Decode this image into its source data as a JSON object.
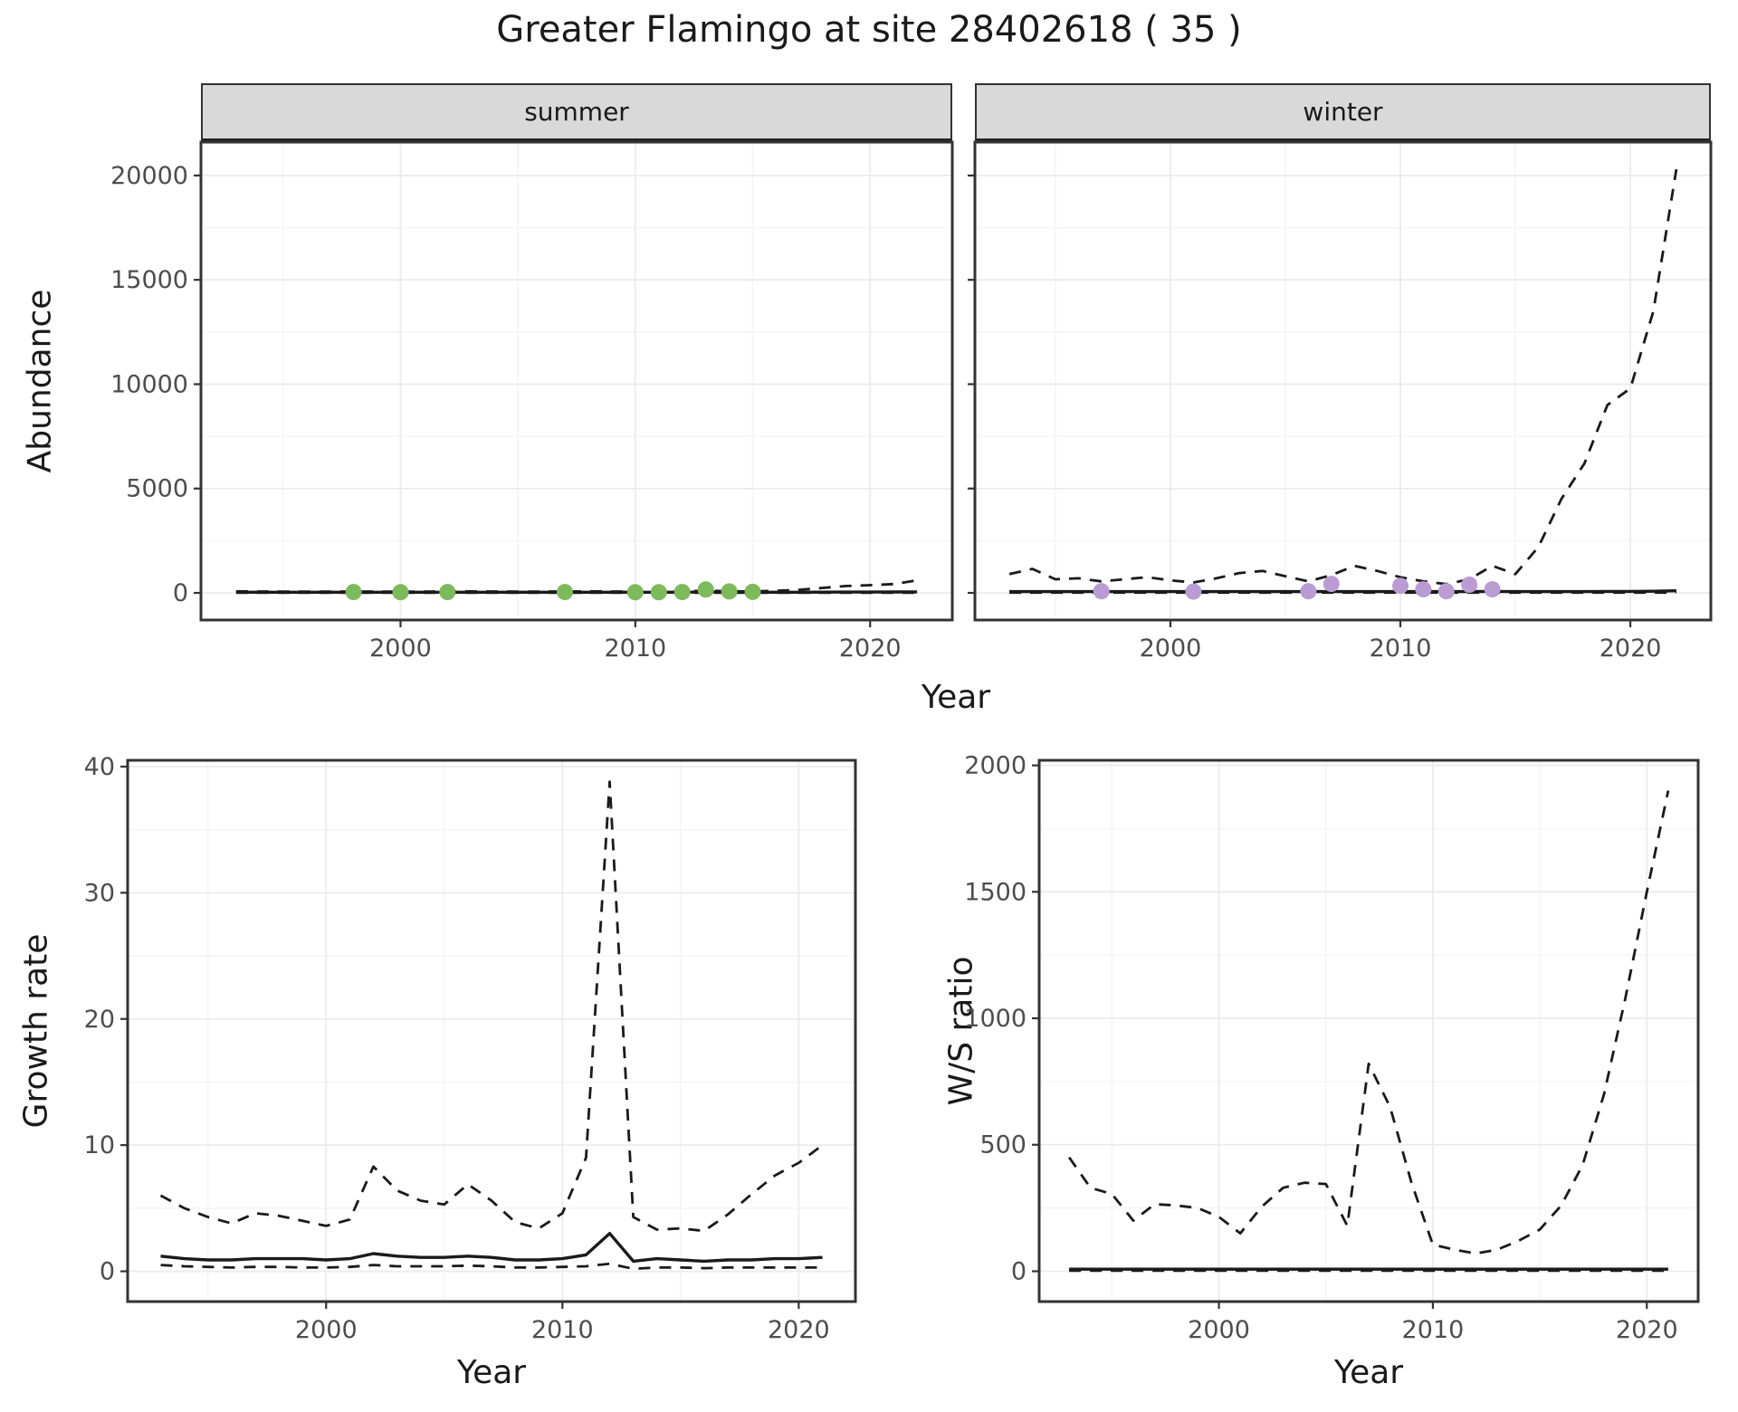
{
  "title": "Greater Flamingo at site 28402618 ( 35 )",
  "colors": {
    "summer_point": "#7cba5c",
    "winter_point": "#b99cd4",
    "line": "#1a1a1a",
    "strip_bg": "#d9d9d9",
    "grid_major": "#ebebeb",
    "grid_minor": "#f5f5f5",
    "panel_border": "#333333",
    "tick_text": "#4d4d4d"
  },
  "chart_data": [
    {
      "name": "abundance-summer",
      "type": "line",
      "facet_label": "summer",
      "xlabel": "Year",
      "ylabel": "Abundance",
      "xlim": [
        1991.5,
        2023.5
      ],
      "ylim": [
        -1300,
        21600
      ],
      "xticks": [
        2000,
        2010,
        2020
      ],
      "yticks": [
        0,
        5000,
        10000,
        15000,
        20000
      ],
      "xticks_minor": [
        1995,
        2005,
        2015
      ],
      "yticks_minor": [
        2500,
        7500,
        12500,
        17500
      ],
      "series": [
        {
          "name": "ci-upper",
          "style": "dashed",
          "x": [
            1993,
            1994,
            1995,
            1996,
            1997,
            1998,
            1999,
            2000,
            2001,
            2002,
            2003,
            2004,
            2005,
            2006,
            2007,
            2008,
            2009,
            2010,
            2011,
            2012,
            2013,
            2014,
            2015,
            2016,
            2017,
            2018,
            2019,
            2020,
            2021,
            2022
          ],
          "y": [
            70,
            65,
            60,
            60,
            60,
            65,
            60,
            60,
            60,
            65,
            70,
            65,
            60,
            60,
            65,
            70,
            65,
            60,
            60,
            65,
            110,
            80,
            70,
            100,
            150,
            240,
            330,
            370,
            420,
            600
          ]
        },
        {
          "name": "ci-lower",
          "style": "dashed",
          "x": [
            1993,
            1994,
            1995,
            1996,
            1997,
            1998,
            1999,
            2000,
            2001,
            2002,
            2003,
            2004,
            2005,
            2006,
            2007,
            2008,
            2009,
            2010,
            2011,
            2012,
            2013,
            2014,
            2015,
            2016,
            2017,
            2018,
            2019,
            2020,
            2021,
            2022
          ],
          "y": [
            5,
            5,
            5,
            5,
            5,
            5,
            5,
            5,
            5,
            5,
            5,
            5,
            5,
            5,
            5,
            5,
            5,
            5,
            5,
            5,
            10,
            5,
            5,
            5,
            5,
            5,
            5,
            5,
            5,
            5
          ]
        },
        {
          "name": "mean",
          "style": "solid",
          "x": [
            1993,
            1994,
            1995,
            1996,
            1997,
            1998,
            1999,
            2000,
            2001,
            2002,
            2003,
            2004,
            2005,
            2006,
            2007,
            2008,
            2009,
            2010,
            2011,
            2012,
            2013,
            2014,
            2015,
            2016,
            2017,
            2018,
            2019,
            2020,
            2021,
            2022
          ],
          "y": [
            30,
            30,
            30,
            30,
            30,
            30,
            30,
            30,
            30,
            30,
            30,
            30,
            30,
            30,
            30,
            30,
            30,
            30,
            30,
            30,
            45,
            35,
            30,
            30,
            30,
            35,
            40,
            40,
            45,
            50
          ]
        },
        {
          "name": "observations",
          "style": "points",
          "color": "#7cba5c",
          "x": [
            1998,
            2000,
            2002,
            2007,
            2010,
            2011,
            2012,
            2013,
            2014,
            2015
          ],
          "y": [
            40,
            30,
            40,
            40,
            30,
            30,
            40,
            160,
            70,
            50
          ]
        }
      ]
    },
    {
      "name": "abundance-winter",
      "type": "line",
      "facet_label": "winter",
      "xlabel": "Year",
      "ylabel": "Abundance",
      "xlim": [
        1991.5,
        2023.5
      ],
      "ylim": [
        -1300,
        21600
      ],
      "xticks": [
        2000,
        2010,
        2020
      ],
      "yticks": [
        0,
        5000,
        10000,
        15000,
        20000
      ],
      "xticks_minor": [
        1995,
        2005,
        2015
      ],
      "yticks_minor": [
        2500,
        7500,
        12500,
        17500
      ],
      "series": [
        {
          "name": "ci-upper",
          "style": "dashed",
          "x": [
            1993,
            1994,
            1995,
            1996,
            1997,
            1998,
            1999,
            2000,
            2001,
            2002,
            2003,
            2004,
            2005,
            2006,
            2007,
            2008,
            2009,
            2010,
            2011,
            2012,
            2013,
            2014,
            2015,
            2016,
            2017,
            2018,
            2019,
            2020,
            2021,
            2022
          ],
          "y": [
            900,
            1150,
            650,
            700,
            550,
            650,
            750,
            600,
            500,
            700,
            950,
            1050,
            800,
            550,
            850,
            1300,
            1050,
            750,
            550,
            420,
            650,
            1300,
            900,
            2200,
            4500,
            6200,
            9000,
            9800,
            13500,
            20300
          ]
        },
        {
          "name": "ci-lower",
          "style": "dashed",
          "x": [
            1993,
            1994,
            1995,
            1996,
            1997,
            1998,
            1999,
            2000,
            2001,
            2002,
            2003,
            2004,
            2005,
            2006,
            2007,
            2008,
            2009,
            2010,
            2011,
            2012,
            2013,
            2014,
            2015,
            2016,
            2017,
            2018,
            2019,
            2020,
            2021,
            2022
          ],
          "y": [
            15,
            15,
            15,
            15,
            15,
            15,
            15,
            15,
            15,
            15,
            15,
            15,
            15,
            15,
            15,
            15,
            15,
            15,
            15,
            15,
            15,
            15,
            15,
            15,
            15,
            15,
            15,
            15,
            15,
            15
          ]
        },
        {
          "name": "mean",
          "style": "solid",
          "x": [
            1993,
            1994,
            1995,
            1996,
            1997,
            1998,
            1999,
            2000,
            2001,
            2002,
            2003,
            2004,
            2005,
            2006,
            2007,
            2008,
            2009,
            2010,
            2011,
            2012,
            2013,
            2014,
            2015,
            2016,
            2017,
            2018,
            2019,
            2020,
            2021,
            2022
          ],
          "y": [
            60,
            60,
            60,
            60,
            60,
            60,
            60,
            60,
            60,
            60,
            60,
            60,
            60,
            60,
            60,
            60,
            60,
            60,
            60,
            60,
            60,
            70,
            60,
            60,
            60,
            60,
            70,
            70,
            80,
            100
          ]
        },
        {
          "name": "observations",
          "style": "points",
          "color": "#b99cd4",
          "x": [
            1997,
            2001,
            2006,
            2007,
            2010,
            2011,
            2012,
            2013,
            2014
          ],
          "y": [
            80,
            60,
            80,
            430,
            340,
            170,
            80,
            390,
            170
          ]
        }
      ]
    },
    {
      "name": "growth-rate",
      "type": "line",
      "facet_label": "",
      "xlabel": "Year",
      "ylabel": "Growth rate",
      "xlim": [
        1991.6,
        2022.4
      ],
      "ylim": [
        -2.4,
        40.5
      ],
      "xticks": [
        2000,
        2010,
        2020
      ],
      "yticks": [
        0,
        10,
        20,
        30,
        40
      ],
      "xticks_minor": [
        1995,
        2005,
        2015
      ],
      "yticks_minor": [
        5,
        15,
        25,
        35
      ],
      "series": [
        {
          "name": "ci-upper",
          "style": "dashed",
          "x": [
            1993,
            1994,
            1995,
            1996,
            1997,
            1998,
            1999,
            2000,
            2001,
            2002,
            2003,
            2004,
            2005,
            2006,
            2007,
            2008,
            2009,
            2010,
            2011,
            2012,
            2013,
            2014,
            2015,
            2016,
            2017,
            2018,
            2019,
            2020,
            2021
          ],
          "y": [
            6.0,
            5.0,
            4.3,
            3.8,
            4.6,
            4.4,
            4.0,
            3.6,
            4.1,
            8.3,
            6.4,
            5.6,
            5.3,
            6.9,
            5.6,
            3.9,
            3.4,
            4.6,
            9.0,
            38.8,
            4.3,
            3.3,
            3.4,
            3.2,
            4.5,
            6.1,
            7.6,
            8.6,
            10.0
          ]
        },
        {
          "name": "ci-lower",
          "style": "dashed",
          "x": [
            1993,
            1994,
            1995,
            1996,
            1997,
            1998,
            1999,
            2000,
            2001,
            2002,
            2003,
            2004,
            2005,
            2006,
            2007,
            2008,
            2009,
            2010,
            2011,
            2012,
            2013,
            2014,
            2015,
            2016,
            2017,
            2018,
            2019,
            2020,
            2021
          ],
          "y": [
            0.5,
            0.4,
            0.35,
            0.3,
            0.35,
            0.35,
            0.3,
            0.3,
            0.35,
            0.5,
            0.4,
            0.4,
            0.4,
            0.45,
            0.4,
            0.3,
            0.3,
            0.35,
            0.4,
            0.6,
            0.2,
            0.3,
            0.3,
            0.25,
            0.3,
            0.3,
            0.3,
            0.3,
            0.3
          ]
        },
        {
          "name": "mean",
          "style": "solid",
          "x": [
            1993,
            1994,
            1995,
            1996,
            1997,
            1998,
            1999,
            2000,
            2001,
            2002,
            2003,
            2004,
            2005,
            2006,
            2007,
            2008,
            2009,
            2010,
            2011,
            2012,
            2013,
            2014,
            2015,
            2016,
            2017,
            2018,
            2019,
            2020,
            2021
          ],
          "y": [
            1.2,
            1.0,
            0.9,
            0.9,
            1.0,
            1.0,
            1.0,
            0.9,
            1.0,
            1.4,
            1.2,
            1.1,
            1.1,
            1.2,
            1.1,
            0.9,
            0.9,
            1.0,
            1.3,
            3.0,
            0.8,
            1.0,
            0.9,
            0.8,
            0.9,
            0.9,
            1.0,
            1.0,
            1.1
          ]
        }
      ]
    },
    {
      "name": "ws-ratio",
      "type": "line",
      "facet_label": "",
      "xlabel": "Year",
      "ylabel": "W/S ratio",
      "xlim": [
        1991.6,
        2022.4
      ],
      "ylim": [
        -120,
        2020
      ],
      "xticks": [
        2000,
        2010,
        2020
      ],
      "yticks": [
        0,
        500,
        1000,
        1500,
        2000
      ],
      "xticks_minor": [
        1995,
        2005,
        2015
      ],
      "yticks_minor": [
        250,
        750,
        1250,
        1750
      ],
      "series": [
        {
          "name": "ci-upper",
          "style": "dashed",
          "x": [
            1993,
            1994,
            1995,
            1996,
            1997,
            1998,
            1999,
            2000,
            2001,
            2002,
            2003,
            2004,
            2005,
            2006,
            2007,
            2008,
            2009,
            2010,
            2011,
            2012,
            2013,
            2014,
            2015,
            2016,
            2017,
            2018,
            2019,
            2020,
            2021
          ],
          "y": [
            450,
            330,
            305,
            200,
            265,
            260,
            250,
            215,
            150,
            255,
            330,
            350,
            345,
            180,
            820,
            650,
            350,
            105,
            85,
            70,
            85,
            120,
            165,
            260,
            420,
            700,
            1080,
            1500,
            1900
          ]
        },
        {
          "name": "ci-lower",
          "style": "dashed",
          "x": [
            1993,
            1994,
            1995,
            1996,
            1997,
            1998,
            1999,
            2000,
            2001,
            2002,
            2003,
            2004,
            2005,
            2006,
            2007,
            2008,
            2009,
            2010,
            2011,
            2012,
            2013,
            2014,
            2015,
            2016,
            2017,
            2018,
            2019,
            2020,
            2021
          ],
          "y": [
            2,
            2,
            2,
            2,
            2,
            2,
            2,
            2,
            2,
            2,
            2,
            2,
            2,
            2,
            2,
            2,
            2,
            2,
            2,
            2,
            2,
            2,
            2,
            2,
            2,
            2,
            2,
            2,
            2
          ]
        },
        {
          "name": "mean",
          "style": "solid",
          "x": [
            1993,
            1994,
            1995,
            1996,
            1997,
            1998,
            1999,
            2000,
            2001,
            2002,
            2003,
            2004,
            2005,
            2006,
            2007,
            2008,
            2009,
            2010,
            2011,
            2012,
            2013,
            2014,
            2015,
            2016,
            2017,
            2018,
            2019,
            2020,
            2021
          ],
          "y": [
            8,
            8,
            8,
            8,
            8,
            8,
            8,
            8,
            8,
            8,
            8,
            8,
            8,
            8,
            8,
            8,
            8,
            8,
            8,
            8,
            8,
            8,
            8,
            8,
            8,
            8,
            8,
            8,
            8
          ]
        }
      ]
    }
  ]
}
